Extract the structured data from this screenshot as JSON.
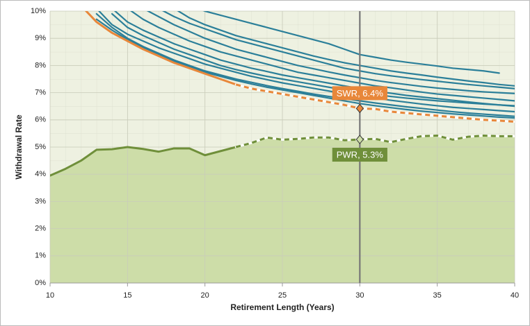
{
  "chart_data": {
    "type": "line",
    "xlabel": "Retirement Length (Years)",
    "ylabel": "Withdrawal Rate",
    "x": [
      10,
      11,
      12,
      13,
      14,
      15,
      16,
      17,
      18,
      19,
      20,
      21,
      22,
      23,
      24,
      25,
      26,
      27,
      28,
      29,
      30,
      31,
      32,
      33,
      34,
      35,
      36,
      37,
      38,
      39,
      40
    ],
    "xlim": [
      10,
      40
    ],
    "xticks": [
      10,
      15,
      20,
      25,
      30,
      35,
      40
    ],
    "ylim": [
      0,
      10
    ],
    "yticks": [
      {
        "value": 0,
        "label": "0%"
      },
      {
        "value": 1,
        "label": "1%"
      },
      {
        "value": 2,
        "label": "2%"
      },
      {
        "value": 3,
        "label": "3%"
      },
      {
        "value": 4,
        "label": "4%"
      },
      {
        "value": 5,
        "label": "5%"
      },
      {
        "value": 6,
        "label": "6%"
      },
      {
        "value": 7,
        "label": "7%"
      },
      {
        "value": 8,
        "label": "8%"
      },
      {
        "value": 9,
        "label": "9%"
      },
      {
        "value": 10,
        "label": "10%"
      }
    ],
    "grid": true,
    "vline": 30,
    "series": [
      {
        "color": "#2b7f99",
        "values": [
          null,
          null,
          null,
          null,
          null,
          null,
          null,
          null,
          null,
          10.2,
          10.0,
          9.85,
          9.7,
          9.55,
          9.4,
          9.25,
          9.1,
          8.95,
          8.8,
          8.6,
          8.4,
          8.3,
          8.2,
          8.12,
          8.05,
          7.98,
          7.9,
          7.85,
          7.8,
          7.72,
          null
        ]
      },
      {
        "color": "#2b7f99",
        "values": [
          null,
          null,
          null,
          null,
          null,
          null,
          null,
          10.1,
          9.8,
          9.55,
          9.35,
          9.15,
          8.95,
          8.8,
          8.65,
          8.5,
          8.35,
          8.2,
          8.05,
          7.9,
          7.8,
          7.7,
          7.62,
          7.55,
          7.48,
          7.42,
          7.36,
          7.3,
          7.25,
          7.2,
          7.15
        ]
      },
      {
        "color": "#2b7f99",
        "values": [
          null,
          null,
          null,
          null,
          null,
          10.1,
          9.7,
          9.4,
          9.15,
          8.9,
          8.7,
          8.5,
          8.35,
          8.2,
          8.05,
          7.9,
          7.75,
          7.65,
          7.55,
          7.45,
          7.35,
          7.25,
          7.18,
          7.1,
          7.02,
          6.95,
          6.9,
          6.85,
          6.8,
          6.75,
          6.7
        ]
      },
      {
        "color": "#2b7f99",
        "values": [
          null,
          null,
          null,
          null,
          10.1,
          9.6,
          9.3,
          9.05,
          8.8,
          8.6,
          8.4,
          8.2,
          8.05,
          7.9,
          7.78,
          7.65,
          7.55,
          7.45,
          7.35,
          7.25,
          7.15,
          7.05,
          6.98,
          6.9,
          6.84,
          6.78,
          6.72,
          6.66,
          6.6,
          6.55,
          6.5
        ]
      },
      {
        "color": "#2b7f99",
        "values": [
          null,
          null,
          null,
          10.1,
          9.5,
          9.15,
          8.9,
          8.65,
          8.45,
          8.25,
          8.05,
          7.9,
          7.75,
          7.6,
          7.48,
          7.36,
          7.26,
          7.16,
          7.06,
          6.96,
          6.88,
          6.8,
          6.72,
          6.65,
          6.58,
          6.52,
          6.46,
          6.42,
          6.38,
          6.34,
          6.3
        ]
      },
      {
        "color": "#2b7f99",
        "values": [
          null,
          null,
          null,
          9.9,
          9.4,
          9.0,
          8.7,
          8.45,
          8.2,
          8.0,
          7.8,
          7.65,
          7.5,
          7.38,
          7.26,
          7.15,
          7.05,
          6.95,
          6.86,
          6.78,
          6.7,
          6.62,
          6.55,
          6.48,
          6.42,
          6.36,
          6.3,
          6.25,
          6.21,
          6.17,
          6.13
        ]
      },
      {
        "color": "#2b7f99",
        "values": [
          null,
          null,
          null,
          null,
          null,
          null,
          10.1,
          9.8,
          9.5,
          9.25,
          9.0,
          8.8,
          8.6,
          8.45,
          8.3,
          8.15,
          8.0,
          7.88,
          7.76,
          7.65,
          7.55,
          7.45,
          7.37,
          7.3,
          7.23,
          7.17,
          7.12,
          7.07,
          7.03,
          7.0,
          6.97
        ]
      },
      {
        "color": "#2b7f99",
        "values": [
          null,
          null,
          null,
          null,
          null,
          null,
          null,
          null,
          10.1,
          9.75,
          9.5,
          9.3,
          9.1,
          8.95,
          8.8,
          8.65,
          8.5,
          8.35,
          8.22,
          8.1,
          8.0,
          7.9,
          7.8,
          7.72,
          7.65,
          7.57,
          7.5,
          7.43,
          7.37,
          7.3,
          7.25
        ]
      },
      {
        "color": "#2b7f99",
        "values": [
          null,
          null,
          null,
          null,
          9.9,
          9.4,
          9.1,
          8.85,
          8.6,
          8.4,
          8.2,
          8.0,
          7.85,
          7.72,
          7.6,
          7.5,
          7.4,
          7.3,
          7.2,
          7.1,
          7.0,
          6.93,
          6.86,
          6.8,
          6.75,
          6.7,
          6.66,
          6.62,
          6.58,
          6.55,
          6.52
        ]
      },
      {
        "color": "#2b7f99",
        "values": [
          null,
          null,
          null,
          9.7,
          9.3,
          8.95,
          8.65,
          8.4,
          8.15,
          7.95,
          7.75,
          7.6,
          7.45,
          7.32,
          7.2,
          7.1,
          7.0,
          6.9,
          6.8,
          6.7,
          6.6,
          6.52,
          6.45,
          6.38,
          6.32,
          6.27,
          6.22,
          6.18,
          6.14,
          6.1,
          6.07
        ]
      },
      {
        "color": "#e8873a",
        "width": 3,
        "dashed_from_x": 22,
        "annotation_label": "SWR, 6.4%",
        "annotation_x": 30,
        "annotation_position": "above",
        "values": [
          null,
          null,
          10.2,
          9.6,
          9.2,
          8.9,
          8.6,
          8.35,
          8.1,
          7.9,
          7.7,
          7.5,
          7.3,
          7.15,
          7.05,
          6.95,
          6.85,
          6.75,
          6.65,
          6.55,
          6.42,
          6.4,
          6.3,
          6.25,
          6.2,
          6.15,
          6.1,
          6.05,
          6.0,
          5.97,
          5.93
        ]
      },
      {
        "color": "#6f8f3a",
        "width": 3,
        "fill": "#cddda8",
        "dashed_from_x": 22,
        "annotation_label": "PWR, 5.3%",
        "annotation_x": 30,
        "annotation_position": "below",
        "values": [
          3.95,
          4.2,
          4.5,
          4.9,
          4.92,
          5.0,
          4.93,
          4.83,
          4.95,
          4.95,
          4.7,
          4.85,
          5.0,
          5.15,
          5.35,
          5.27,
          5.3,
          5.35,
          5.35,
          5.25,
          5.28,
          5.3,
          5.18,
          5.3,
          5.4,
          5.42,
          5.27,
          5.38,
          5.42,
          5.4,
          5.4
        ]
      }
    ]
  }
}
